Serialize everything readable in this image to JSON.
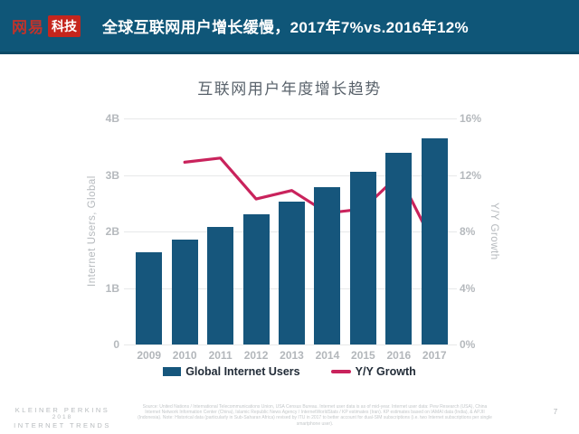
{
  "header": {
    "logo": {
      "brand": "网易",
      "sub": "科技"
    },
    "title": "全球互联网用户增长缓慢，2017年7%vs.2016年12%"
  },
  "chart": {
    "title": "互联网用户年度增长趋势",
    "left_axis": {
      "title": "Internet Users, Global",
      "ticks": [
        "4B",
        "3B",
        "2B",
        "1B",
        "0"
      ]
    },
    "right_axis": {
      "title": "Y/Y Growth",
      "ticks": [
        "16%",
        "12%",
        "8%",
        "4%",
        "0%"
      ]
    },
    "legend": [
      {
        "label": "Global Internet Users",
        "type": "bar"
      },
      {
        "label": "Y/Y Growth",
        "type": "line"
      }
    ]
  },
  "chart_data": {
    "type": "bar",
    "categories": [
      "2009",
      "2010",
      "2011",
      "2012",
      "2013",
      "2014",
      "2015",
      "2016",
      "2017"
    ],
    "series": [
      {
        "name": "Global Internet Users",
        "type": "bar",
        "axis": "left",
        "values": [
          1.63,
          1.86,
          2.08,
          2.31,
          2.53,
          2.78,
          3.05,
          3.4,
          3.65
        ]
      },
      {
        "name": "Y/Y Growth",
        "type": "line",
        "axis": "right",
        "values": [
          null,
          12.9,
          13.2,
          10.3,
          10.9,
          9.3,
          9.6,
          12.0,
          7.0
        ]
      }
    ],
    "title": "互联网用户年度增长趋势",
    "left_ylabel": "Internet Users, Global",
    "left_ylim": [
      0,
      4
    ],
    "left_unit": "B",
    "right_ylabel": "Y/Y Growth",
    "right_ylim": [
      0,
      16
    ],
    "right_unit": "%",
    "grid": true,
    "legend_position": "bottom"
  },
  "footer": {
    "brand_lines": [
      "KLEINER PERKINS",
      "2018",
      "INTERNET TRENDS"
    ],
    "source_text": "Source: United Nations / International Telecommunications Union, USA Census Bureau. Internet user data is as of mid-year. Internet user data: Pew Research (USA), China Internet Network Information Center (China), Islamic Republic News Agency / InternetWorldStats / KP estimates (Iran). KP estimates based on IAMAI data (India), & APJII (Indonesia). Note: Historical data (particularly in Sub-Saharan Africa) revised by ITU in 2017 to better account for dual-SIM subscriptions (i.e. two Internet subscriptions per single smartphone user).",
    "page_number": "7"
  },
  "colors": {
    "header_bg": "#0F5678",
    "header_border": "#0B4A66",
    "brand_red": "#C5251D",
    "bar": "#16567C",
    "line": "#C9235C",
    "grid": "#E7E8E9",
    "axis_text": "#B5B9BD",
    "chart_title_text": "#59626B",
    "legend_text": "#222C38"
  }
}
